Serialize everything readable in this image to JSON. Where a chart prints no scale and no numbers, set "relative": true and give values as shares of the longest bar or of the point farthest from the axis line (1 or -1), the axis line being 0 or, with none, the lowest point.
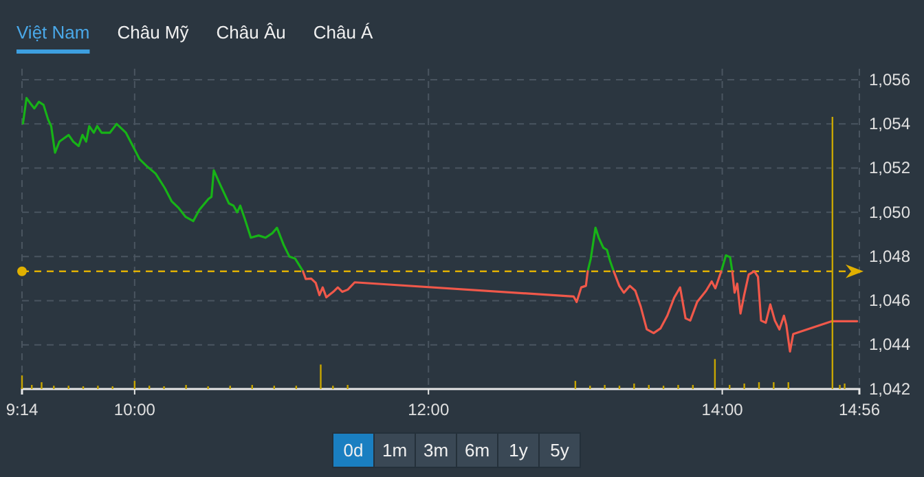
{
  "chart_data": [
    {
      "type": "line",
      "annotations": [
        "Việt Nam",
        "Châu Mỹ",
        "Châu Âu",
        "Châu Á",
        "0d",
        "1m",
        "3m",
        "6m",
        "1y",
        "5y"
      ],
      "xlim": [
        9.2333,
        14.9333
      ],
      "xticks": [
        {
          "value": 9.2333,
          "label": "9:14"
        },
        {
          "value": 10,
          "label": "10:00"
        },
        {
          "value": 12,
          "label": "12:00"
        },
        {
          "value": 14,
          "label": "14:00"
        },
        {
          "value": 14.9333,
          "label": "14:56"
        }
      ],
      "ylim": [
        1042,
        1056
      ],
      "yticks": [
        {
          "value": 1042,
          "label": "1,042"
        },
        {
          "value": 1044,
          "label": "1,044"
        },
        {
          "value": 1046,
          "label": "1,046"
        },
        {
          "value": 1048,
          "label": "1,048"
        },
        {
          "value": 1050,
          "label": "1,050"
        },
        {
          "value": 1052,
          "label": "1,052"
        },
        {
          "value": 1054,
          "label": "1,054"
        },
        {
          "value": 1056,
          "label": "1,056"
        }
      ],
      "grid": true,
      "line_style": "solid",
      "ref_lines": [
        {
          "axis": "y",
          "value": 1047.33,
          "color": "#e0b000",
          "line_style": "dashed"
        }
      ],
      "series": [
        {
          "color": "#17b317",
          "x": [
            9.24,
            9.264,
            9.287,
            9.317,
            9.348,
            9.38,
            9.411,
            9.432,
            9.458,
            9.488,
            9.551,
            9.582,
            9.619,
            9.645,
            9.67,
            9.691,
            9.722,
            9.745,
            9.775,
            9.831,
            9.878,
            9.941,
            9.988,
            10.034,
            10.081,
            10.143,
            10.205,
            10.252,
            10.299,
            10.346,
            10.399,
            10.439,
            10.502,
            10.523,
            10.539,
            10.579,
            10.642,
            10.673,
            10.698,
            10.719,
            10.75,
            10.791,
            10.844,
            10.89,
            10.937,
            10.969,
            11.016,
            11.053,
            11.093,
            11.146,
            12.0,
            13.084,
            13.105,
            13.137,
            13.159,
            13.19,
            13.215,
            13.236,
            13.261,
            13.6,
            13.993,
            14.025,
            14.053,
            14.068
          ],
          "values": [
            1054.02,
            1055.17,
            1054.96,
            1054.7,
            1055.0,
            1054.86,
            1054.2,
            1053.9,
            1052.7,
            1053.2,
            1053.5,
            1053.2,
            1053.0,
            1053.5,
            1053.2,
            1053.9,
            1053.6,
            1053.9,
            1053.6,
            1053.6,
            1054.0,
            1053.6,
            1053.0,
            1052.4,
            1052.1,
            1051.75,
            1051.1,
            1050.5,
            1050.2,
            1049.8,
            1049.6,
            1050.1,
            1050.6,
            1050.7,
            1051.9,
            1051.3,
            1050.4,
            1050.3,
            1050.0,
            1050.3,
            1049.7,
            1048.85,
            1048.95,
            1048.85,
            1049.05,
            1049.3,
            1048.5,
            1048.0,
            1047.9,
            1047.33,
            null,
            1047.33,
            1047.9,
            1049.3,
            1048.85,
            1048.4,
            1048.3,
            1047.8,
            1047.33,
            null,
            1047.33,
            1048.05,
            1047.97,
            1047.33
          ]
        },
        {
          "color": "#f0584a",
          "x": [
            11.146,
            11.165,
            11.202,
            11.233,
            11.258,
            11.28,
            11.305,
            11.352,
            11.383,
            11.414,
            11.451,
            11.498,
            12.988,
            13.009,
            13.04,
            13.072,
            13.084,
            13.17,
            13.261,
            13.299,
            13.33,
            13.371,
            13.408,
            13.445,
            13.486,
            13.533,
            13.579,
            13.626,
            13.673,
            13.713,
            13.75,
            13.782,
            13.829,
            13.89,
            13.928,
            13.953,
            13.993,
            14.03,
            14.068,
            14.084,
            14.102,
            14.124,
            14.149,
            14.18,
            14.218,
            14.243,
            14.264,
            14.296,
            14.327,
            14.358,
            14.389,
            14.42,
            14.436,
            14.461,
            14.483,
            14.747,
            14.918
          ],
          "values": [
            1047.33,
            1046.98,
            1047.0,
            1046.8,
            1046.25,
            1046.6,
            1046.15,
            1046.4,
            1046.6,
            1046.4,
            1046.5,
            1046.83,
            1046.19,
            1045.94,
            1046.6,
            1046.67,
            1047.33,
            null,
            1047.33,
            1046.67,
            1046.36,
            1046.67,
            1046.45,
            1045.73,
            1044.7,
            1044.53,
            1044.74,
            1045.32,
            1046.14,
            1046.6,
            1045.2,
            1045.1,
            1045.94,
            1046.45,
            1046.87,
            1046.56,
            1047.33,
            null,
            1047.33,
            1046.36,
            1046.77,
            1045.42,
            1046.25,
            1047.18,
            1047.33,
            1047.08,
            1045.1,
            1045.0,
            1045.83,
            1045.1,
            1044.7,
            1045.32,
            1044.9,
            1043.7,
            1044.49,
            1045.07,
            1045.07
          ]
        }
      ]
    },
    {
      "type": "bar",
      "relative": true,
      "xlim": [
        9.2333,
        14.9333
      ],
      "color": "#c8a600",
      "x": [
        9.2333,
        9.3,
        9.3667,
        9.45,
        9.55,
        9.65,
        9.75,
        9.85,
        10.0,
        10.1,
        10.2,
        10.35,
        10.5,
        10.65,
        10.8,
        10.95,
        11.1,
        11.2667,
        11.35,
        11.45,
        13.0,
        13.1,
        13.2,
        13.3,
        13.4,
        13.5,
        13.6,
        13.7,
        13.8,
        13.95,
        14.05,
        14.15,
        14.25,
        14.35,
        14.45,
        14.75,
        14.8,
        14.833
      ],
      "values": [
        0.05,
        0.015,
        0.025,
        0.012,
        0.012,
        0.01,
        0.012,
        0.01,
        0.03,
        0.012,
        0.01,
        0.015,
        0.01,
        0.012,
        0.015,
        0.012,
        0.012,
        0.09,
        0.012,
        0.015,
        0.03,
        0.012,
        0.015,
        0.012,
        0.02,
        0.015,
        0.012,
        0.015,
        0.015,
        0.11,
        0.015,
        0.02,
        0.025,
        0.025,
        0.025,
        1,
        0.015,
        0.02
      ]
    }
  ]
}
